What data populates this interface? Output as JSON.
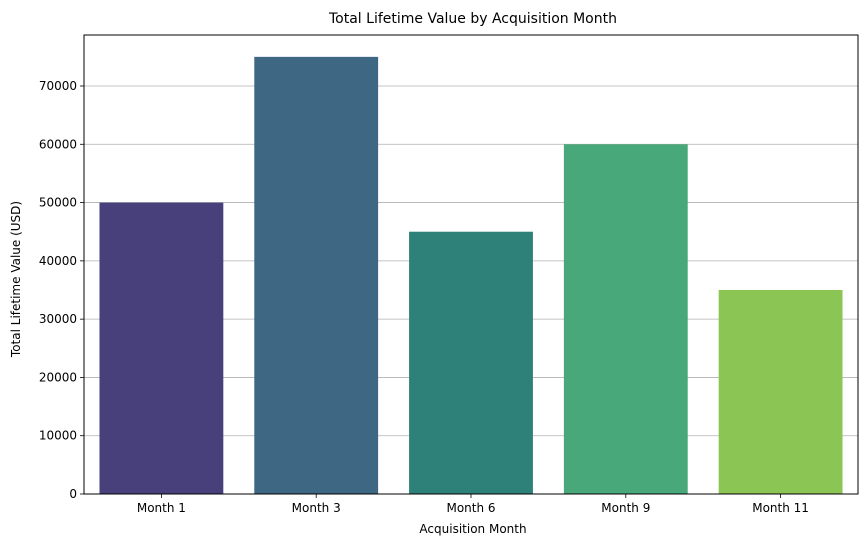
{
  "chart_data": {
    "type": "bar",
    "title": "Total Lifetime Value by Acquisition Month",
    "xlabel": "Acquisition Month",
    "ylabel": "Total Lifetime Value (USD)",
    "categories": [
      "Month 1",
      "Month 3",
      "Month 6",
      "Month 9",
      "Month 11"
    ],
    "values": [
      50000,
      75000,
      45000,
      60000,
      35000
    ],
    "colors": [
      "#48407a",
      "#3e6784",
      "#2e8179",
      "#48a87a",
      "#8bc554"
    ],
    "ylim": [
      0,
      78750
    ],
    "yticks": [
      0,
      10000,
      20000,
      30000,
      40000,
      50000,
      60000,
      70000
    ],
    "grid": "y",
    "legend": "none"
  }
}
